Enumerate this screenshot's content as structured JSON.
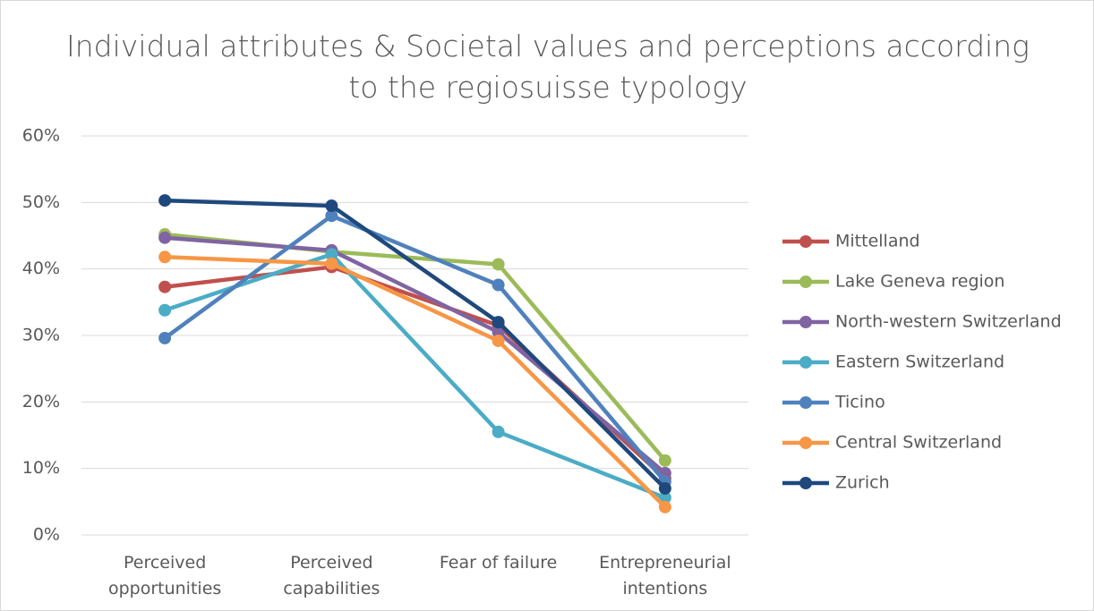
{
  "chart_data": {
    "type": "line",
    "title": "Individual attributes & Societal values and perceptions according to the regiosuisse typology",
    "categories": [
      "Perceived opportunities",
      "Perceived capabilities",
      "Fear of failure",
      "Entrepreneurial intentions"
    ],
    "series": [
      {
        "name": "Mittelland",
        "color": "#c0504d",
        "values": [
          37.3,
          40.3,
          31.5,
          8.5
        ]
      },
      {
        "name": "Lake Geneva region",
        "color": "#9bbb59",
        "values": [
          45.2,
          42.6,
          40.7,
          11.2
        ]
      },
      {
        "name": "North-western Switzerland",
        "color": "#8064a2",
        "values": [
          44.7,
          42.8,
          30.5,
          9.3
        ]
      },
      {
        "name": "Eastern Switzerland",
        "color": "#4bacc6",
        "values": [
          33.8,
          42.2,
          15.5,
          5.6
        ]
      },
      {
        "name": "Ticino",
        "color": "#4f81bd",
        "values": [
          29.6,
          48.0,
          37.6,
          8.0
        ]
      },
      {
        "name": "Central Switzerland",
        "color": "#f79646",
        "values": [
          41.8,
          40.8,
          29.2,
          4.2
        ]
      },
      {
        "name": "Zurich",
        "color": "#1f497d",
        "values": [
          50.3,
          49.5,
          32.0,
          7.0
        ]
      }
    ],
    "ylim": [
      0,
      60
    ],
    "yticks": [
      {
        "value": 0,
        "label": "0%"
      },
      {
        "value": 10,
        "label": "10%"
      },
      {
        "value": 20,
        "label": "20%"
      },
      {
        "value": 30,
        "label": "30%"
      },
      {
        "value": 40,
        "label": "40%"
      },
      {
        "value": 50,
        "label": "50%"
      },
      {
        "value": 60,
        "label": "60%"
      }
    ],
    "grid": true,
    "legend": "right"
  }
}
